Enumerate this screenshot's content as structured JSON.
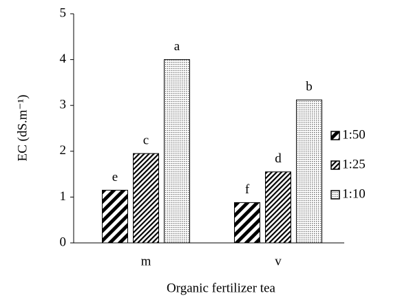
{
  "chart_data": {
    "type": "bar",
    "xlabel": "Organic fertilizer tea",
    "ylabel": "EC (dS.m⁻¹)",
    "categories": [
      "m",
      "v"
    ],
    "series": [
      {
        "name": "1:50",
        "color": "#000000",
        "values": [
          1.15,
          0.88
        ],
        "labels": [
          "e",
          "f"
        ]
      },
      {
        "name": "1:25",
        "color": "#000000",
        "values": [
          1.95,
          1.55
        ],
        "labels": [
          "c",
          "d"
        ]
      },
      {
        "name": "1:10",
        "color": "#000000",
        "values": [
          4.0,
          3.12
        ],
        "labels": [
          "a",
          "b"
        ]
      }
    ],
    "ylim": [
      0,
      5
    ],
    "yticks": [
      0,
      1,
      2,
      3,
      4,
      5
    ],
    "legend": "right"
  }
}
